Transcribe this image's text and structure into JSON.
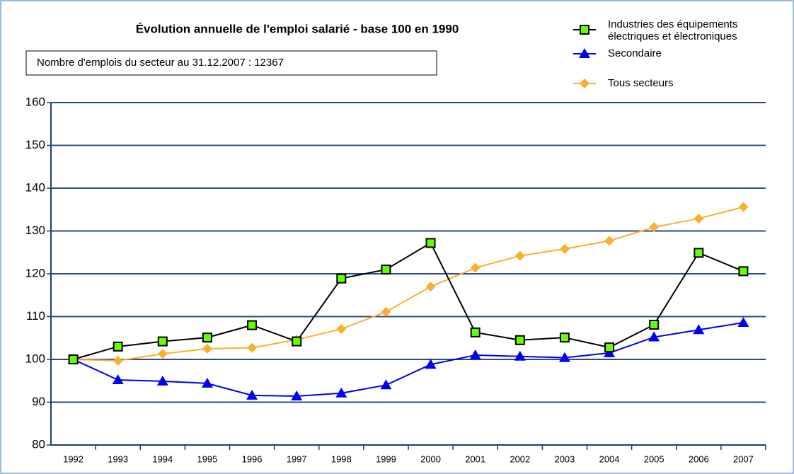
{
  "chart_data": {
    "type": "line",
    "title": "Évolution annuelle de l'emploi salarié - base 100 en 1990",
    "note": "Nombre d'emplois du secteur au 31.12.2007 :  12367",
    "categories": [
      "1992",
      "1993",
      "1994",
      "1995",
      "1996",
      "1997",
      "1998",
      "1999",
      "2000",
      "2001",
      "2002",
      "2003",
      "2004",
      "2005",
      "2006",
      "2007"
    ],
    "series": [
      {
        "name": "Industries des équipements électriques et électroniques",
        "color": "#000000",
        "marker": "square",
        "marker_color": "#66ff00",
        "values": [
          100,
          103,
          104.2,
          105.1,
          108,
          104.2,
          118.9,
          121,
          127.2,
          106.3,
          104.5,
          105.1,
          102.8,
          108.1,
          124.9,
          120.6
        ]
      },
      {
        "name": "Secondaire",
        "color": "#0000ee",
        "marker": "triangle",
        "marker_color": "#0000ee",
        "values": [
          100,
          95.2,
          94.9,
          94.4,
          91.6,
          91.4,
          92.1,
          94,
          98.8,
          101,
          100.7,
          100.4,
          101.5,
          105.2,
          106.9,
          108.6
        ]
      },
      {
        "name": "Tous secteurs",
        "color": "#f8b030",
        "marker": "diamond",
        "marker_color": "#f8b030",
        "values": [
          100,
          99.7,
          101.3,
          102.5,
          102.7,
          104.6,
          107.1,
          111.1,
          117,
          121.4,
          124.2,
          125.8,
          127.7,
          130.9,
          132.9,
          135.6
        ]
      }
    ],
    "ylim": [
      80,
      160
    ],
    "yticks": [
      80,
      90,
      100,
      110,
      120,
      130,
      140,
      150,
      160
    ],
    "grid": true
  }
}
